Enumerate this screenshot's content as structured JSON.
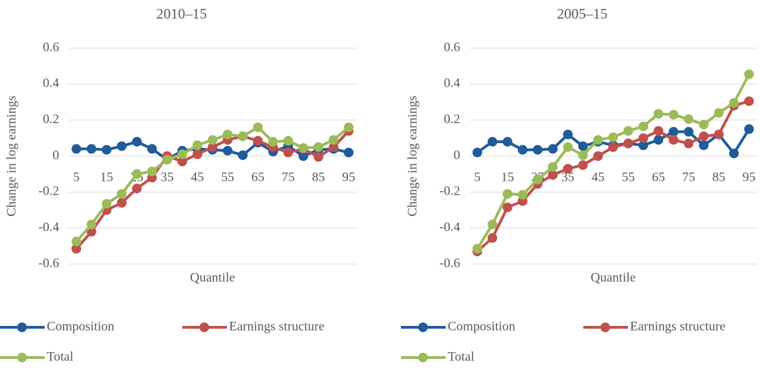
{
  "chart_data": [
    {
      "type": "line",
      "title": "2010–15",
      "x_label": "Quantile",
      "y_label": "Change in log earnings",
      "categories": [
        5,
        null,
        15,
        null,
        25,
        null,
        35,
        null,
        45,
        null,
        55,
        null,
        65,
        null,
        75,
        null,
        85,
        null,
        95
      ],
      "ylim": [
        -0.6,
        0.6
      ],
      "yticks": [
        -0.6,
        -0.4,
        -0.2,
        0,
        0.2,
        0.4,
        0.6
      ],
      "grid": true,
      "series": [
        {
          "name": "Composition",
          "color": "#1f5c99",
          "values": [
            0.04,
            0.04,
            0.035,
            0.055,
            0.08,
            0.04,
            -0.02,
            0.03,
            0.04,
            0.035,
            0.03,
            0.005,
            0.075,
            0.025,
            0.055,
            0,
            0.035,
            0.04,
            0.02
          ]
        },
        {
          "name": "Earnings structure",
          "color": "#c0504d",
          "values": [
            -0.515,
            -0.42,
            -0.3,
            -0.26,
            -0.18,
            -0.12,
            0,
            -0.03,
            0.01,
            0.05,
            0.09,
            0.11,
            0.085,
            0.05,
            0.02,
            0.04,
            -0.005,
            0.05,
            0.14
          ]
        },
        {
          "name": "Total",
          "color": "#9bbb59",
          "values": [
            -0.475,
            -0.38,
            -0.265,
            -0.21,
            -0.1,
            -0.085,
            -0.02,
            0.01,
            0.06,
            0.09,
            0.12,
            0.11,
            0.16,
            0.08,
            0.085,
            0.045,
            0.05,
            0.09,
            0.16
          ]
        }
      ]
    },
    {
      "type": "line",
      "title": "2005–15",
      "x_label": "Quantile",
      "y_label": "Change in log earnings",
      "categories": [
        5,
        null,
        15,
        null,
        25,
        null,
        35,
        null,
        45,
        null,
        55,
        null,
        65,
        null,
        75,
        null,
        85,
        null,
        95
      ],
      "ylim": [
        -0.6,
        0.6
      ],
      "yticks": [
        -0.6,
        -0.4,
        -0.2,
        0,
        0.2,
        0.4,
        0.6
      ],
      "grid": true,
      "series": [
        {
          "name": "Composition",
          "color": "#1f5c99",
          "values": [
            0.02,
            0.08,
            0.08,
            0.035,
            0.035,
            0.04,
            0.12,
            0.055,
            0.08,
            0.06,
            0.07,
            0.06,
            0.09,
            0.135,
            0.135,
            0.06,
            0.12,
            0.015,
            0.15
          ]
        },
        {
          "name": "Earnings structure",
          "color": "#c0504d",
          "values": [
            -0.53,
            -0.455,
            -0.285,
            -0.25,
            -0.155,
            -0.105,
            -0.07,
            -0.05,
            0,
            0.05,
            0.07,
            0.1,
            0.14,
            0.09,
            0.07,
            0.11,
            0.12,
            0.28,
            0.305
          ]
        },
        {
          "name": "Total",
          "color": "#9bbb59",
          "values": [
            -0.515,
            -0.38,
            -0.21,
            -0.215,
            -0.13,
            -0.06,
            0.05,
            0.005,
            0.09,
            0.105,
            0.14,
            0.165,
            0.235,
            0.23,
            0.205,
            0.175,
            0.24,
            0.295,
            0.455
          ]
        }
      ]
    }
  ]
}
